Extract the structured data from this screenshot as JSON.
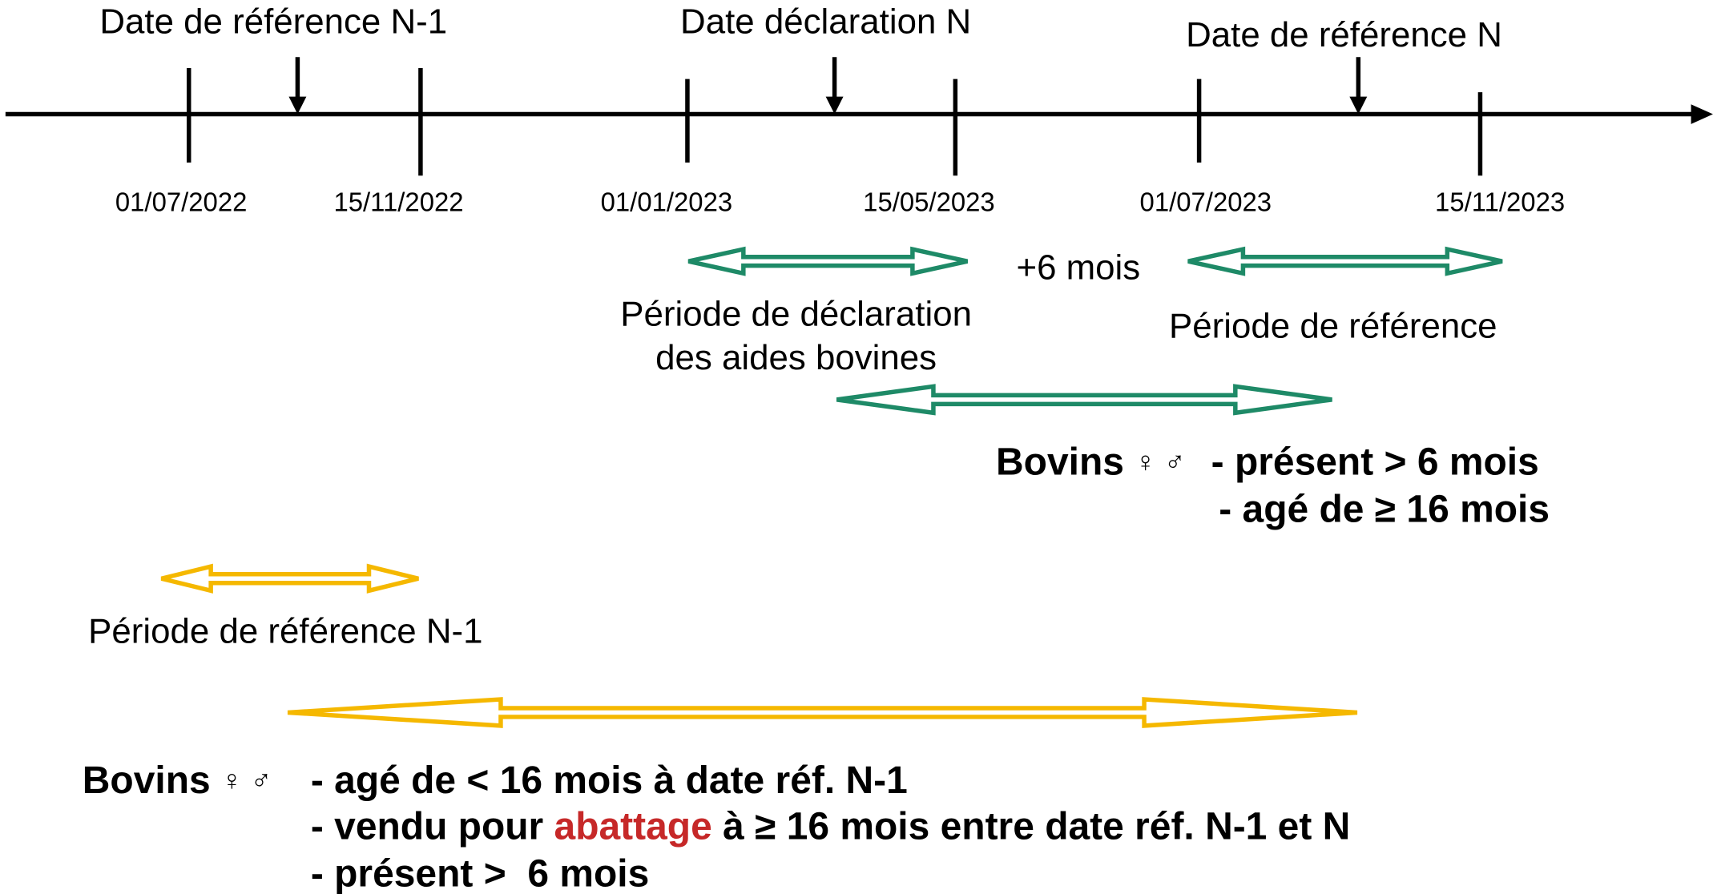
{
  "top_labels": [
    "Date de référence N-1",
    "Date déclaration N",
    "Date de référence N"
  ],
  "dates": [
    "01/07/2022",
    "15/11/2022",
    "01/01/2023",
    "15/05/2023",
    "01/07/2023",
    "15/11/2023"
  ],
  "offset_label": "+6 mois",
  "periods": {
    "declaration": [
      "Période de déclaration",
      "des aides bovines"
    ],
    "reference": "Période de référence",
    "reference_n1": "Période de référence N-1"
  },
  "conditions_n": {
    "subject": "Bovins",
    "symbols": "♀ ♂",
    "lines": [
      "- présent > 6 mois",
      "- agé de ≥ 16 mois"
    ]
  },
  "conditions_n1": {
    "subject": "Bovins",
    "symbols": "♀ ♂",
    "line1": "- agé de < 16 mois à date réf. N-1",
    "line2": {
      "before": "- vendu pour ",
      "highlight": "abattage",
      "after": " à ≥ 16 mois entre date réf. N-1 et N"
    },
    "line3": "- présent >  6 mois"
  }
}
